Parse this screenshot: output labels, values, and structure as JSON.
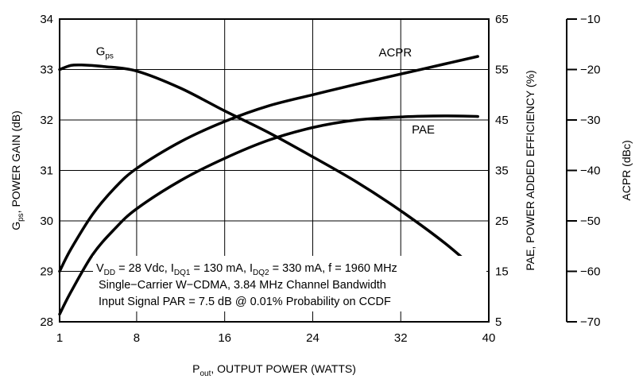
{
  "chart_data": {
    "type": "line",
    "xlabel": {
      "main": "P",
      "sub": "out",
      "rest": ", OUTPUT POWER (WATTS)"
    },
    "ylabel_left": {
      "main": "G",
      "sub": "ps",
      "rest": ", POWER GAIN (dB)"
    },
    "ylabel_right": "PAE, POWER ADDED EFFICIENCY (%)",
    "ylabel_far_right": "ACPR (dBc)",
    "x_ticks": [
      "1",
      "8",
      "16",
      "24",
      "32",
      "40"
    ],
    "x_tick_values": [
      1,
      8,
      16,
      24,
      32,
      40
    ],
    "xlim": [
      1,
      40
    ],
    "y_left_ticks": [
      "28",
      "29",
      "30",
      "31",
      "32",
      "33",
      "34"
    ],
    "y_left_range": [
      28,
      34
    ],
    "y_right_ticks": [
      "5",
      "15",
      "25",
      "35",
      "45",
      "55",
      "65"
    ],
    "y_right_range": [
      5,
      65
    ],
    "y_far_ticks": [
      "−70",
      "−60",
      "−50",
      "−40",
      "−30",
      "−20",
      "−10"
    ],
    "y_far_range": [
      -70,
      -10
    ],
    "grid": true,
    "series": [
      {
        "name": "Gps",
        "label_main": "G",
        "label_sub": "ps",
        "axis": "left",
        "x": [
          1,
          2,
          3,
          5,
          8,
          12,
          16,
          20,
          24,
          28,
          32,
          36,
          39
        ],
        "y": [
          33.0,
          33.08,
          33.09,
          33.06,
          32.97,
          32.63,
          32.18,
          31.75,
          31.27,
          30.77,
          30.2,
          29.56,
          29.0
        ]
      },
      {
        "name": "ACPR",
        "label_main": "ACPR",
        "label_sub": "",
        "axis": "far_right",
        "x": [
          1,
          2,
          4,
          6,
          8,
          12,
          16,
          20,
          24,
          28,
          32,
          36,
          39
        ],
        "y": [
          -60.0,
          -55.7,
          -48.7,
          -43.5,
          -39.6,
          -34.3,
          -30.3,
          -27.2,
          -25.0,
          -22.9,
          -20.9,
          -18.9,
          -17.4
        ]
      },
      {
        "name": "PAE",
        "label_main": "PAE",
        "label_sub": "",
        "axis": "right",
        "x": [
          1,
          2,
          4,
          6,
          8,
          12,
          16,
          20,
          24,
          28,
          32,
          36,
          39
        ],
        "y": [
          6.5,
          10.8,
          18.3,
          23.4,
          27.4,
          33.0,
          37.4,
          41.0,
          43.5,
          45.0,
          45.6,
          45.8,
          45.7
        ]
      }
    ],
    "annotations": [
      {
        "parts": [
          [
            "V",
            ""
          ],
          [
            "DD",
            "sub"
          ],
          [
            " = 28 Vdc, I",
            ""
          ],
          [
            "DQ1",
            "sub"
          ],
          [
            " = 130 mA, I",
            ""
          ],
          [
            "DQ2",
            "sub"
          ],
          [
            " = 330 mA, f = 1960 MHz",
            ""
          ]
        ]
      },
      {
        "parts": [
          [
            "Single−Carrier W−CDMA, 3.84 MHz Channel Bandwidth",
            ""
          ]
        ]
      },
      {
        "parts": [
          [
            "Input Signal PAR = 7.5 dB @ 0.01% Probability on CCDF",
            ""
          ]
        ]
      }
    ]
  }
}
